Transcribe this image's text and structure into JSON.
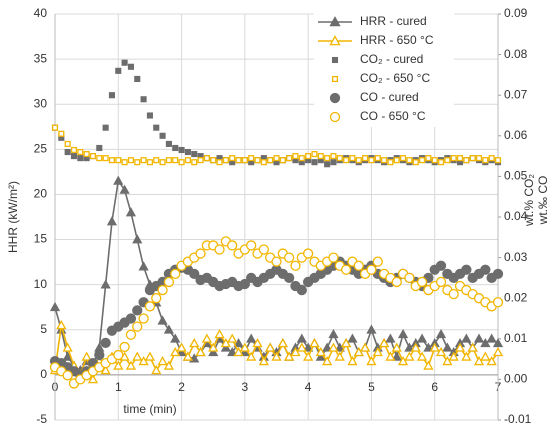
{
  "chart_data": {
    "type": "line",
    "xlabel": "time (min)",
    "ylabel": "HHR (kW/m²)",
    "y2label": [
      "wt.% CO₂",
      "wt.‰ CO"
    ],
    "x": [
      0,
      0.1,
      0.2,
      0.3,
      0.4,
      0.5,
      0.6,
      0.7,
      0.8,
      0.9,
      1,
      1.1,
      1.2,
      1.3,
      1.4,
      1.5,
      1.6,
      1.7,
      1.8,
      1.9,
      2,
      2.1,
      2.2,
      2.3,
      2.4,
      2.5,
      2.6,
      2.7,
      2.8,
      2.9,
      3,
      3.1,
      3.2,
      3.3,
      3.4,
      3.5,
      3.6,
      3.7,
      3.8,
      3.9,
      4,
      4.1,
      4.2,
      4.3,
      4.4,
      4.5,
      4.6,
      4.7,
      4.8,
      4.9,
      5,
      5.1,
      5.2,
      5.3,
      5.4,
      5.5,
      5.6,
      5.7,
      5.8,
      5.9,
      6,
      6.1,
      6.2,
      6.3,
      6.4,
      6.5,
      6.6,
      6.7,
      6.8,
      6.9,
      7
    ],
    "xlim": [
      0,
      7
    ],
    "xticks": [
      0,
      1,
      2,
      3,
      4,
      5,
      6,
      7
    ],
    "ylim": [
      -5,
      40
    ],
    "yticks": [
      -5,
      0,
      5,
      10,
      15,
      20,
      25,
      30,
      35,
      40
    ],
    "y2lim": [
      -0.01,
      0.09
    ],
    "y2ticks": [
      -0.01,
      {
        "value": 0,
        "label": "0.00"
      },
      0.01,
      0.02,
      0.03,
      0.04,
      0.05,
      0.06,
      0.07,
      0.08,
      0.09
    ],
    "grid": true,
    "series": [
      {
        "name": "HRR - cured",
        "color": "#6d6d6d",
        "marker": "triangle",
        "filled": true,
        "line": true,
        "values": [
          7.5,
          5,
          2,
          1,
          0.5,
          1.5,
          1,
          3,
          10,
          17,
          21.5,
          20.5,
          18,
          15,
          12,
          10,
          8,
          6,
          5,
          4,
          2.5,
          2,
          1.8,
          2.5,
          3.5,
          2.5,
          4,
          3,
          2.5,
          3.5,
          2.5,
          4,
          3,
          2,
          3,
          2.5,
          3.5,
          2,
          3,
          4,
          3,
          3.5,
          2,
          3,
          4.5,
          3,
          3.5,
          4,
          2.5,
          3,
          5,
          3,
          3.5,
          4,
          2,
          4.5,
          3,
          3.5,
          4,
          3,
          3.5,
          4.5,
          3,
          2.5,
          3.5,
          4,
          3,
          4,
          3.5,
          4,
          3.5
        ]
      },
      {
        "name": "HRR - 650 °C",
        "color": "#f2b600",
        "marker": "triangle",
        "filled": false,
        "line": true,
        "values": [
          0.5,
          5.5,
          3,
          1,
          0,
          2,
          -0.5,
          1.5,
          0.5,
          2,
          1,
          2,
          1,
          2,
          1.5,
          2,
          0.5,
          1.5,
          1,
          2.5,
          3,
          2,
          3.5,
          2.5,
          4,
          3,
          4.5,
          3.5,
          4,
          2.5,
          3,
          2,
          3.5,
          1.5,
          3,
          2,
          3.5,
          2,
          2.5,
          3,
          2,
          3.5,
          2.5,
          1.5,
          3,
          2,
          3.5,
          1.5,
          2.5,
          3,
          1.5,
          2.5,
          3.5,
          2,
          3,
          1.5,
          2,
          3,
          2,
          1,
          3,
          2.5,
          1.5,
          2,
          3,
          2,
          3,
          1.5,
          2,
          1.5,
          2.5
        ]
      },
      {
        "name": "CO₂ - cured",
        "color": "#6d6d6d",
        "marker": "square",
        "filled": true,
        "line": false,
        "axis": "y2",
        "values": [
          0.062,
          0.0595,
          0.056,
          0.055,
          0.0545,
          0.0545,
          0.055,
          0.057,
          0.062,
          0.07,
          0.076,
          0.078,
          0.077,
          0.074,
          0.069,
          0.065,
          0.062,
          0.06,
          0.058,
          0.057,
          0.0565,
          0.056,
          0.0555,
          0.055,
          0.0545,
          0.054,
          0.0545,
          0.054,
          0.0535,
          0.054,
          0.054,
          0.0535,
          0.054,
          0.0545,
          0.054,
          0.0535,
          0.054,
          0.0545,
          0.054,
          0.0535,
          0.054,
          0.0535,
          0.054,
          0.053,
          0.0535,
          0.054,
          0.0545,
          0.054,
          0.0535,
          0.054,
          0.0545,
          0.054,
          0.0535,
          0.054,
          0.0545,
          0.054,
          0.0535,
          0.054,
          0.0545,
          0.054,
          0.0535,
          0.054,
          0.0545,
          0.054,
          0.0535,
          0.054,
          0.0545,
          0.054,
          0.0535,
          0.054,
          0.0535
        ]
      },
      {
        "name": "CO₂ - 650 °C",
        "color": "#f2b600",
        "marker": "square",
        "filled": false,
        "line": false,
        "axis": "y2",
        "values": [
          0.062,
          0.0605,
          0.058,
          0.0565,
          0.056,
          0.0555,
          0.055,
          0.0545,
          0.0545,
          0.054,
          0.054,
          0.0535,
          0.054,
          0.0535,
          0.054,
          0.0535,
          0.054,
          0.0535,
          0.054,
          0.054,
          0.0535,
          0.054,
          0.0535,
          0.054,
          0.0545,
          0.054,
          0.0535,
          0.054,
          0.0545,
          0.054,
          0.054,
          0.0545,
          0.054,
          0.0535,
          0.054,
          0.0545,
          0.054,
          0.0545,
          0.055,
          0.0545,
          0.055,
          0.0555,
          0.055,
          0.0545,
          0.055,
          0.0545,
          0.054,
          0.0545,
          0.054,
          0.0545,
          0.054,
          0.0545,
          0.054,
          0.0535,
          0.054,
          0.0545,
          0.054,
          0.0535,
          0.054,
          0.0545,
          0.054,
          0.0535,
          0.054,
          0.0545,
          0.0545,
          0.054,
          0.0545,
          0.0545,
          0.054,
          0.0545,
          0.054
        ]
      },
      {
        "name": "CO - cured",
        "color": "#6d6d6d",
        "marker": "circle",
        "filled": true,
        "line": false,
        "axis": "y2",
        "values": [
          0.0045,
          0.004,
          0.003,
          0.002,
          0.001,
          0.002,
          0.004,
          0.006,
          0.009,
          0.012,
          0.013,
          0.014,
          0.015,
          0.017,
          0.019,
          0.022,
          0.023,
          0.024,
          0.026,
          0.027,
          0.0275,
          0.027,
          0.026,
          0.0245,
          0.025,
          0.024,
          0.023,
          0.0235,
          0.024,
          0.023,
          0.0235,
          0.025,
          0.024,
          0.025,
          0.026,
          0.027,
          0.026,
          0.025,
          0.023,
          0.022,
          0.024,
          0.025,
          0.026,
          0.027,
          0.028,
          0.029,
          0.028,
          0.027,
          0.026,
          0.027,
          0.028,
          0.026,
          0.025,
          0.024,
          0.025,
          0.026,
          0.025,
          0.024,
          0.023,
          0.025,
          0.027,
          0.028,
          0.026,
          0.025,
          0.026,
          0.027,
          0.025,
          0.026,
          0.027,
          0.025,
          0.026
        ]
      },
      {
        "name": "CO - 650 °C",
        "color": "#f2b600",
        "marker": "circle",
        "filled": false,
        "line": false,
        "axis": "y2",
        "values": [
          0.003,
          0.002,
          0.001,
          -0.001,
          0,
          0.001,
          0.002,
          0.003,
          0.004,
          0.005,
          0.006,
          0.008,
          0.011,
          0.013,
          0.015,
          0.018,
          0.02,
          0.022,
          0.024,
          0.026,
          0.028,
          0.029,
          0.03,
          0.031,
          0.033,
          0.033,
          0.032,
          0.034,
          0.033,
          0.031,
          0.032,
          0.033,
          0.031,
          0.032,
          0.03,
          0.029,
          0.031,
          0.03,
          0.028,
          0.03,
          0.031,
          0.029,
          0.028,
          0.029,
          0.03,
          0.028,
          0.027,
          0.029,
          0.028,
          0.026,
          0.027,
          0.029,
          0.026,
          0.025,
          0.024,
          0.026,
          0.025,
          0.023,
          0.024,
          0.022,
          0.023,
          0.024,
          0.022,
          0.021,
          0.023,
          0.022,
          0.021,
          0.02,
          0.019,
          0.018,
          0.019
        ]
      }
    ]
  }
}
